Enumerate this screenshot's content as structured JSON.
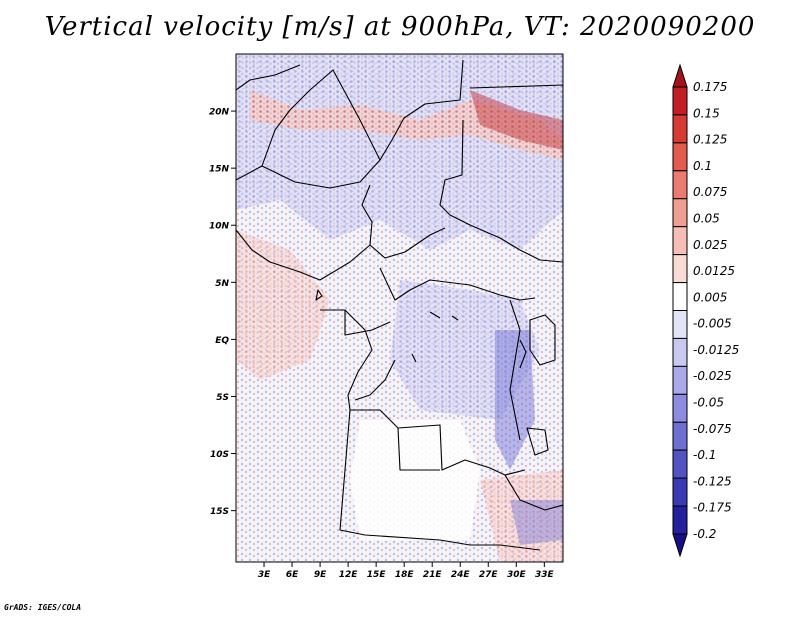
{
  "title": "Vertical velocity [m/s] at 900hPa, VT: 2020090200",
  "credit": "GrADS: IGES/COLA",
  "map": {
    "lat_range": [
      -19.5,
      25
    ],
    "lon_range": [
      0,
      35
    ],
    "lat_ticks": [
      {
        "lat": 20,
        "label": "20N"
      },
      {
        "lat": 15,
        "label": "15N"
      },
      {
        "lat": 10,
        "label": "10N"
      },
      {
        "lat": 5,
        "label": "5N"
      },
      {
        "lat": 0,
        "label": "EQ"
      },
      {
        "lat": -5,
        "label": "5S"
      },
      {
        "lat": -10,
        "label": "10S"
      },
      {
        "lat": -15,
        "label": "15S"
      }
    ],
    "lon_ticks": [
      {
        "lon": 3,
        "label": "3E"
      },
      {
        "lon": 6,
        "label": "6E"
      },
      {
        "lon": 9,
        "label": "9E"
      },
      {
        "lon": 12,
        "label": "12E"
      },
      {
        "lon": 15,
        "label": "15E"
      },
      {
        "lon": 18,
        "label": "18E"
      },
      {
        "lon": 21,
        "label": "21E"
      },
      {
        "lon": 24,
        "label": "24E"
      },
      {
        "lon": 27,
        "label": "27E"
      },
      {
        "lon": 30,
        "label": "30E"
      },
      {
        "lon": 33,
        "label": "33E"
      }
    ]
  },
  "colorbar": {
    "labels": [
      "0.175",
      "0.15",
      "0.125",
      "0.1",
      "0.075",
      "0.05",
      "0.025",
      "0.0125",
      "0.005",
      "-0.005",
      "-0.0125",
      "-0.025",
      "-0.05",
      "-0.075",
      "-0.1",
      "-0.125",
      "-0.175",
      "-0.2"
    ],
    "colors": [
      "#a0141a",
      "#c21e23",
      "#d83b33",
      "#e35a4e",
      "#ea7b6e",
      "#f09e92",
      "#f5bfb6",
      "#f9dcd6",
      "#ffffff",
      "#e3e3f6",
      "#c8c8f0",
      "#aaaaea",
      "#8c8ce0",
      "#6f6fd2",
      "#5353c4",
      "#3a3ab4",
      "#25209e",
      "#180f86"
    ]
  }
}
